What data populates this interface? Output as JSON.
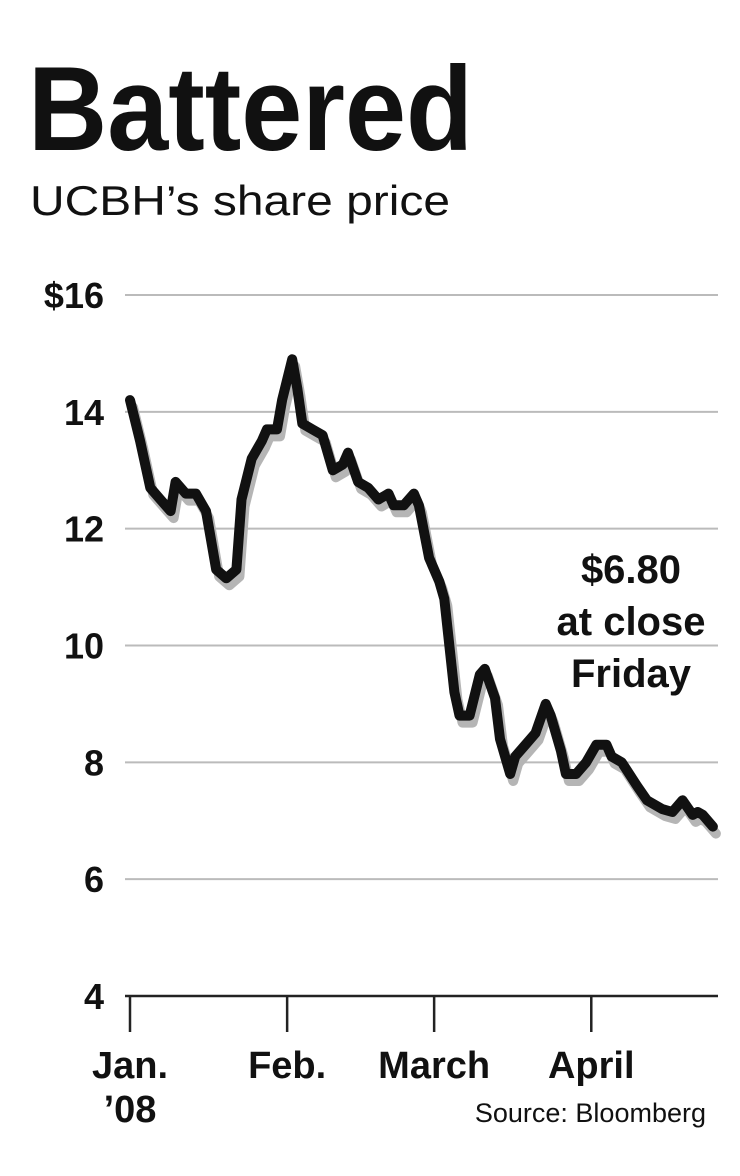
{
  "chart_data": {
    "type": "line",
    "title": "Battered",
    "subtitle": "UCBH’s share price",
    "annotation": [
      "$6.80",
      "at close",
      "Friday"
    ],
    "source": "Source: Bloomberg",
    "x": [
      0,
      2,
      4,
      6,
      8,
      9,
      11,
      13,
      15,
      16,
      17,
      19,
      21,
      22,
      24,
      26,
      27,
      29,
      30,
      32,
      33,
      34,
      36,
      38,
      40,
      42,
      43,
      45,
      47,
      49,
      51,
      52,
      54,
      56,
      57,
      59,
      61,
      62,
      64,
      65,
      67,
      69,
      70,
      72,
      73,
      75,
      76,
      78,
      80,
      82,
      83,
      85,
      86,
      88,
      90,
      92,
      94,
      95,
      97,
      100,
      102,
      105,
      107,
      109,
      111,
      112,
      113,
      115
    ],
    "series": [
      {
        "name": "UCBH",
        "color": "#111111",
        "values": [
          14.2,
          13.5,
          12.7,
          12.5,
          12.3,
          12.8,
          12.6,
          12.6,
          12.3,
          11.8,
          11.3,
          11.15,
          11.3,
          12.5,
          13.2,
          13.5,
          13.7,
          13.7,
          14.2,
          14.9,
          14.4,
          13.8,
          13.7,
          13.6,
          13.0,
          13.1,
          13.3,
          12.8,
          12.7,
          12.5,
          12.6,
          12.4,
          12.4,
          12.6,
          12.4,
          11.5,
          11.1,
          10.8,
          9.2,
          8.8,
          8.8,
          9.5,
          9.6,
          9.1,
          8.4,
          7.8,
          8.1,
          8.3,
          8.5,
          9.0,
          8.8,
          8.2,
          7.8,
          7.8,
          8.0,
          8.3,
          8.3,
          8.1,
          8.0,
          7.6,
          7.35,
          7.2,
          7.15,
          7.35,
          7.1,
          7.15,
          7.1,
          6.9
        ]
      }
    ],
    "xlim": [
      0,
      116
    ],
    "xticks": [
      {
        "value": 0,
        "label": "Jan.\n’08"
      },
      {
        "value": 31,
        "label": "Feb."
      },
      {
        "value": 60,
        "label": "March"
      },
      {
        "value": 91,
        "label": "April"
      }
    ],
    "ylim": [
      4,
      16
    ],
    "yticks": [
      4,
      6,
      8,
      10,
      12,
      14,
      {
        "value": 16,
        "label": "$16"
      }
    ],
    "grid": true
  }
}
